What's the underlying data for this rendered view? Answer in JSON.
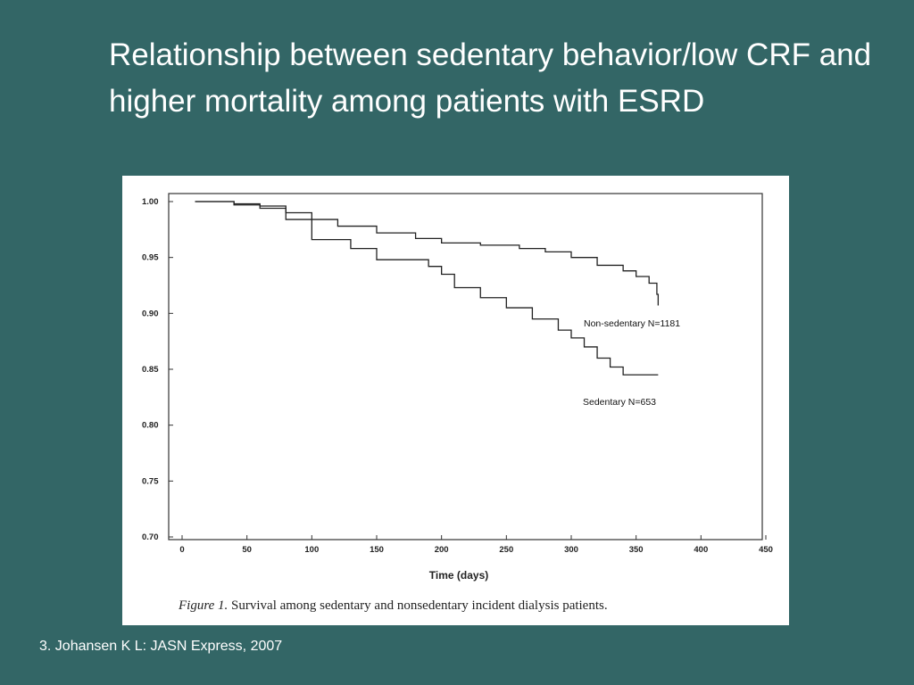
{
  "slide": {
    "title": "Relationship between sedentary behavior/low CRF and higher mortality among patients with ESRD",
    "citation": "3. Johansen K L: JASN Express, 2007"
  },
  "figure": {
    "caption_label": "Figure 1.",
    "caption_text": " Survival among sedentary and nonsedentary incident dialysis patients."
  },
  "chart_data": {
    "type": "line",
    "title": "",
    "xlabel": "Time (days)",
    "ylabel": "",
    "xlim": [
      0,
      450
    ],
    "ylim": [
      0.7,
      1.0
    ],
    "x_ticks": [
      0,
      50,
      100,
      150,
      200,
      250,
      300,
      350,
      400,
      450
    ],
    "x_tick_labels": [
      "0",
      "50",
      "100",
      "150",
      "200",
      "250",
      "300",
      "350",
      "400",
      "450"
    ],
    "y_ticks": [
      1.0,
      0.95,
      0.9,
      0.85,
      0.8,
      0.75,
      0.7
    ],
    "y_tick_labels": [
      "1.00",
      "0.95",
      "0.90",
      "0.85",
      "0.80",
      "0.75",
      "0.70"
    ],
    "grid": false,
    "series": [
      {
        "name": "Non-sedentary N=1181",
        "x": [
          10,
          40,
          60,
          80,
          100,
          120,
          150,
          180,
          200,
          230,
          260,
          280,
          300,
          320,
          340,
          350,
          360,
          366,
          367
        ],
        "y": [
          1.0,
          0.998,
          0.996,
          0.99,
          0.984,
          0.978,
          0.972,
          0.967,
          0.963,
          0.961,
          0.958,
          0.955,
          0.95,
          0.943,
          0.938,
          0.933,
          0.927,
          0.917,
          0.907
        ]
      },
      {
        "name": "Sedentary N=653",
        "x": [
          10,
          40,
          60,
          80,
          100,
          130,
          150,
          190,
          200,
          210,
          230,
          250,
          270,
          290,
          300,
          310,
          320,
          330,
          340,
          367
        ],
        "y": [
          1.0,
          0.997,
          0.994,
          0.984,
          0.966,
          0.958,
          0.948,
          0.942,
          0.935,
          0.923,
          0.914,
          0.905,
          0.895,
          0.885,
          0.878,
          0.87,
          0.86,
          0.852,
          0.845,
          0.845
        ]
      }
    ]
  }
}
